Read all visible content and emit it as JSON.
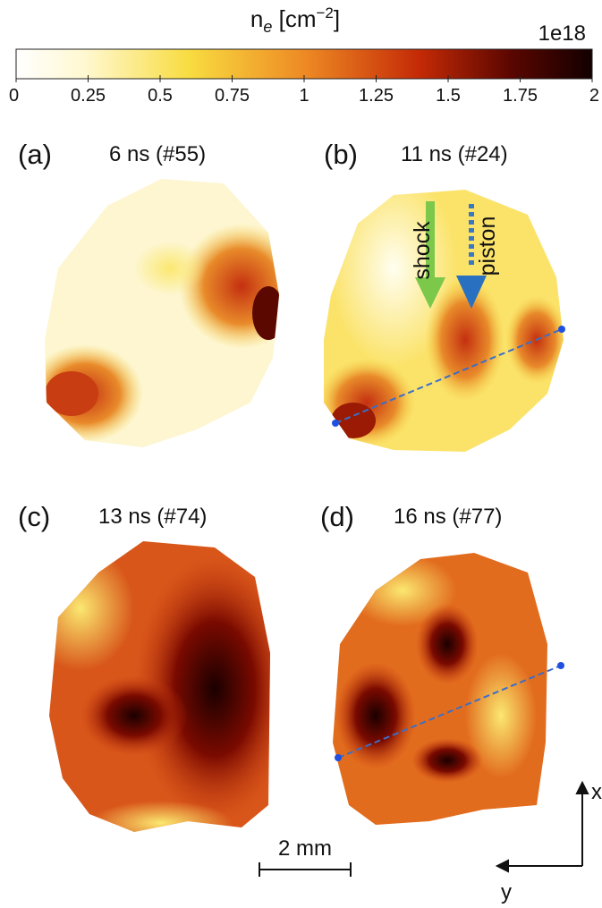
{
  "colorbar": {
    "label_base": "n",
    "label_sub": "e",
    "label_mid": " [cm",
    "label_sup": "−2",
    "label_end": "]",
    "multiplier": "1e18",
    "lim": [
      0,
      2
    ],
    "ticks": [
      0,
      0.25,
      0.5,
      0.75,
      1,
      1.25,
      1.5,
      1.75,
      2
    ]
  },
  "panels": [
    {
      "letter": "(a)",
      "title": "6 ns (#55)"
    },
    {
      "letter": "(b)",
      "title": "11 ns (#24)"
    },
    {
      "letter": "(c)",
      "title": "13 ns (#74)"
    },
    {
      "letter": "(d)",
      "title": "16 ns (#77)"
    }
  ],
  "annotations": {
    "shock": "shock",
    "piston": "piston"
  },
  "scale_bar": "2 mm",
  "axes": {
    "x": "x",
    "y": "y"
  }
}
